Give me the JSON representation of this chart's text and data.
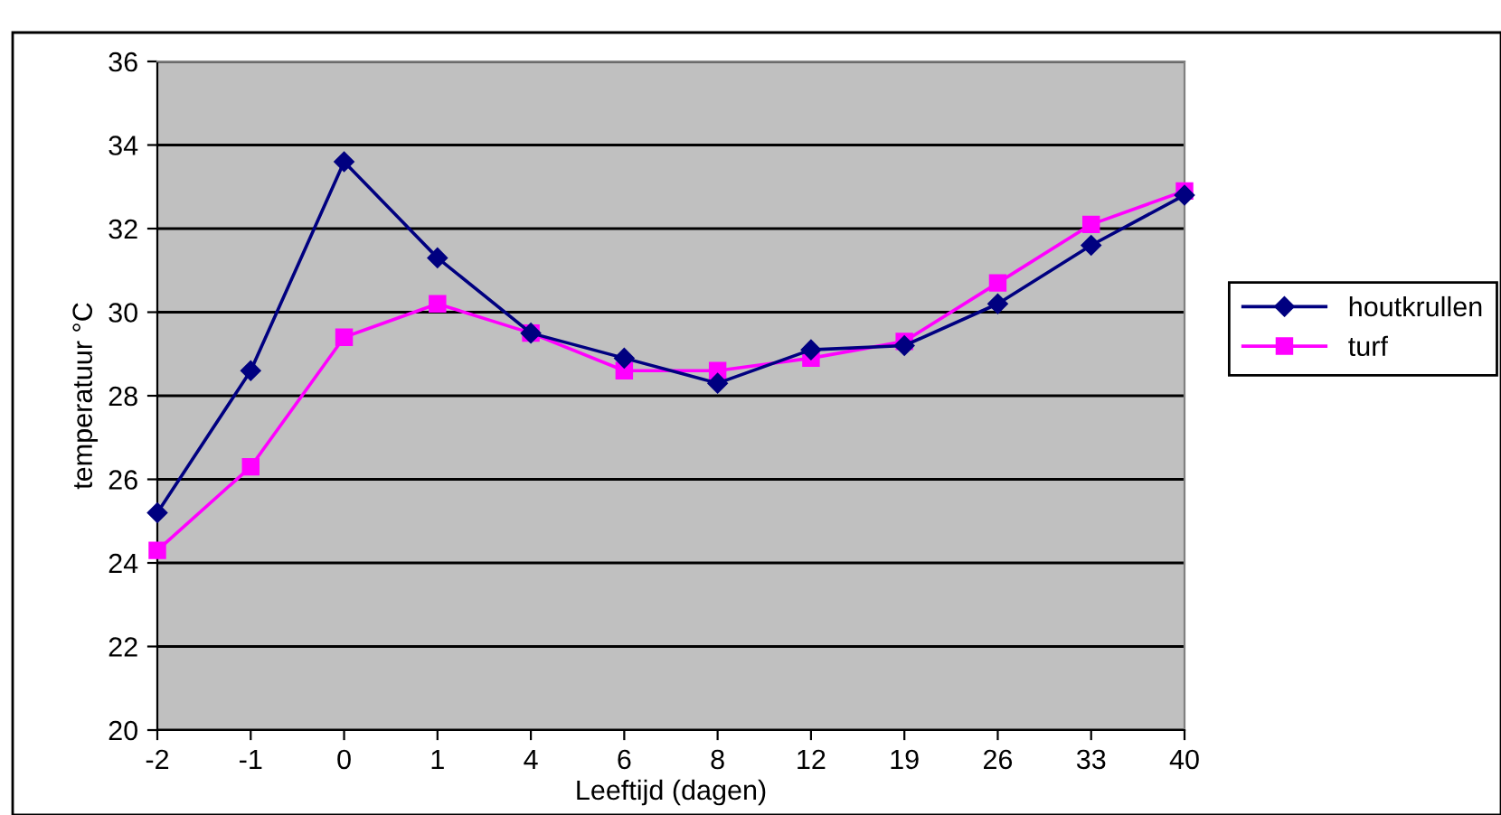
{
  "chart_data": {
    "type": "line",
    "xlabel": "Leeftijd (dagen)",
    "ylabel": "temperatuur °C",
    "categories": [
      "-2",
      "-1",
      "0",
      "1",
      "4",
      "6",
      "8",
      "12",
      "19",
      "26",
      "33",
      "40"
    ],
    "series": [
      {
        "name": "houtkrullen",
        "color": "#000080",
        "marker": "diamond",
        "values": [
          25.2,
          28.6,
          33.6,
          31.3,
          29.5,
          28.9,
          28.3,
          29.1,
          29.2,
          30.2,
          31.6,
          32.8
        ]
      },
      {
        "name": "turf",
        "color": "#ff00ff",
        "marker": "square",
        "values": [
          24.3,
          26.3,
          29.4,
          30.2,
          29.5,
          28.6,
          28.6,
          28.9,
          29.3,
          30.7,
          32.1,
          32.9
        ]
      }
    ],
    "ylim": [
      20,
      36
    ],
    "yticks": [
      20,
      22,
      24,
      26,
      28,
      30,
      32,
      34,
      36
    ],
    "grid": "y",
    "legend": "right",
    "line_style": "solid"
  }
}
